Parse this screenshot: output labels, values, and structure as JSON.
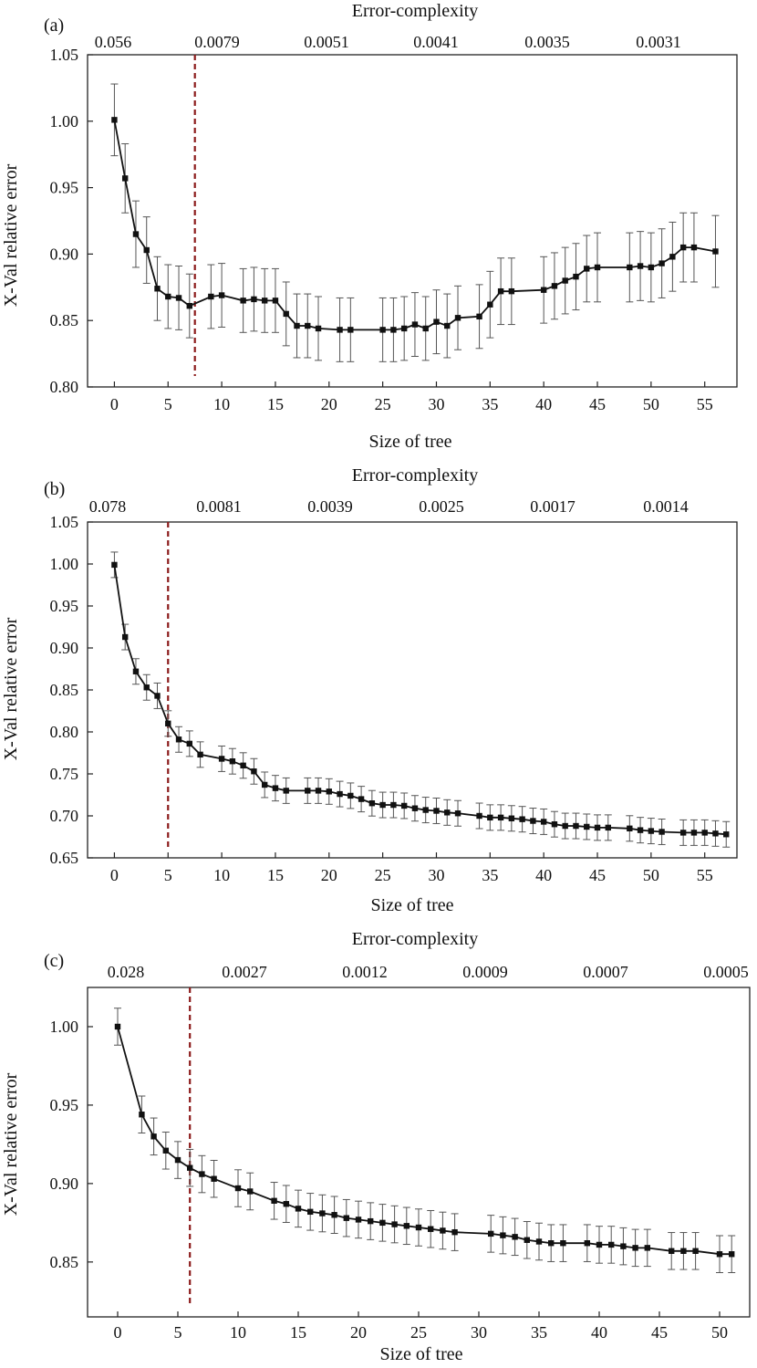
{
  "chart_data": [
    {
      "type": "line",
      "panel_label": "(a)",
      "xlabel": "Size of tree",
      "ylabel": "X-Val relative error",
      "top_axis_title": "Error-complexity",
      "top_tick_labels": [
        "0.056",
        "0.0079",
        "0.0051",
        "0.0041",
        "0.0035",
        "0.0031"
      ],
      "xlim": [
        -2.5,
        58
      ],
      "ylim": [
        0.8,
        1.05
      ],
      "x_ticks": [
        0,
        5,
        10,
        15,
        20,
        25,
        30,
        35,
        40,
        45,
        50,
        55
      ],
      "y_ticks": [
        "0.80",
        "0.85",
        "0.90",
        "0.95",
        "1.00",
        "1.05"
      ],
      "cutoff_x": 7.5,
      "line_color": "#111111",
      "cutoff_color": "#8b1a1a",
      "error_color": "#555555",
      "x": [
        0,
        1,
        2,
        3,
        4,
        5,
        6,
        7,
        9,
        10,
        12,
        13,
        14,
        15,
        16,
        17,
        18,
        19,
        21,
        22,
        25,
        26,
        27,
        28,
        29,
        30,
        31,
        32,
        34,
        35,
        36,
        37,
        40,
        41,
        42,
        43,
        44,
        45,
        48,
        49,
        50,
        51,
        52,
        53,
        54,
        56
      ],
      "values": [
        1.001,
        0.957,
        0.915,
        0.903,
        0.874,
        0.868,
        0.867,
        0.861,
        0.868,
        0.869,
        0.865,
        0.866,
        0.865,
        0.865,
        0.855,
        0.846,
        0.846,
        0.844,
        0.843,
        0.843,
        0.843,
        0.843,
        0.844,
        0.847,
        0.844,
        0.849,
        0.846,
        0.852,
        0.853,
        0.862,
        0.872,
        0.872,
        0.873,
        0.876,
        0.88,
        0.883,
        0.889,
        0.89,
        0.89,
        0.891,
        0.89,
        0.893,
        0.898,
        0.905,
        0.905,
        0.902
      ],
      "error": [
        0.027,
        0.026,
        0.025,
        0.025,
        0.024,
        0.024,
        0.024,
        0.024,
        0.024,
        0.024,
        0.024,
        0.024,
        0.024,
        0.024,
        0.024,
        0.024,
        0.024,
        0.024,
        0.024,
        0.024,
        0.024,
        0.024,
        0.024,
        0.024,
        0.024,
        0.024,
        0.024,
        0.024,
        0.024,
        0.025,
        0.025,
        0.025,
        0.025,
        0.025,
        0.025,
        0.025,
        0.025,
        0.026,
        0.026,
        0.026,
        0.026,
        0.026,
        0.026,
        0.026,
        0.026,
        0.027
      ]
    },
    {
      "type": "line",
      "panel_label": "(b)",
      "xlabel": "Size of tree",
      "ylabel": "X-Val relative error",
      "top_axis_title": "Error-complexity",
      "top_tick_labels": [
        "0.078",
        "0.0081",
        "0.0039",
        "0.0025",
        "0.0017",
        "0.0014"
      ],
      "xlim": [
        -2.5,
        58
      ],
      "ylim": [
        0.65,
        1.05
      ],
      "x_ticks": [
        0,
        5,
        10,
        15,
        20,
        25,
        30,
        35,
        40,
        45,
        50,
        55
      ],
      "y_ticks": [
        "0.65",
        "0.70",
        "0.75",
        "0.80",
        "0.85",
        "0.90",
        "0.95",
        "1.00",
        "1.05"
      ],
      "cutoff_x": 5,
      "line_color": "#111111",
      "cutoff_color": "#8b1a1a",
      "error_color": "#555555",
      "x": [
        0,
        1,
        2,
        3,
        4,
        5,
        6,
        7,
        8,
        10,
        11,
        12,
        13,
        14,
        15,
        16,
        18,
        19,
        20,
        21,
        22,
        23,
        24,
        25,
        26,
        27,
        28,
        29,
        30,
        31,
        32,
        34,
        35,
        36,
        37,
        38,
        39,
        40,
        41,
        42,
        43,
        44,
        45,
        46,
        48,
        49,
        50,
        51,
        53,
        54,
        55,
        56,
        57
      ],
      "values": [
        0.999,
        0.913,
        0.872,
        0.853,
        0.843,
        0.81,
        0.791,
        0.786,
        0.773,
        0.768,
        0.765,
        0.76,
        0.753,
        0.737,
        0.733,
        0.73,
        0.73,
        0.73,
        0.729,
        0.726,
        0.724,
        0.72,
        0.715,
        0.713,
        0.713,
        0.712,
        0.709,
        0.707,
        0.706,
        0.704,
        0.703,
        0.7,
        0.698,
        0.698,
        0.697,
        0.696,
        0.694,
        0.693,
        0.69,
        0.688,
        0.688,
        0.687,
        0.686,
        0.686,
        0.685,
        0.683,
        0.682,
        0.681,
        0.68,
        0.68,
        0.68,
        0.679,
        0.678
      ]
    },
    {
      "type": "line",
      "panel_label": "(c)",
      "xlabel": "Size of tree",
      "ylabel": "X-Val relative error",
      "top_axis_title": "Error-complexity",
      "top_tick_labels": [
        "0.028",
        "0.0027",
        "0.0012",
        "0.0009",
        "0.0007",
        "0.0005"
      ],
      "xlim": [
        -2.5,
        52.5
      ],
      "ylim": [
        0.815,
        1.025
      ],
      "x_ticks": [
        0,
        5,
        10,
        15,
        20,
        25,
        30,
        35,
        40,
        45,
        50
      ],
      "y_ticks": [
        "0.85",
        "0.90",
        "0.95",
        "1.00"
      ],
      "cutoff_x": 6,
      "line_color": "#111111",
      "cutoff_color": "#8b1a1a",
      "error_color": "#555555",
      "x": [
        0,
        2,
        3,
        4,
        5,
        6,
        7,
        8,
        10,
        11,
        13,
        14,
        15,
        16,
        17,
        18,
        19,
        20,
        21,
        22,
        23,
        24,
        25,
        26,
        27,
        28,
        31,
        32,
        33,
        34,
        35,
        36,
        37,
        39,
        40,
        41,
        42,
        43,
        44,
        46,
        47,
        48,
        50,
        51
      ],
      "values": [
        1.0,
        0.944,
        0.93,
        0.921,
        0.915,
        0.91,
        0.906,
        0.903,
        0.897,
        0.895,
        0.889,
        0.887,
        0.884,
        0.882,
        0.881,
        0.88,
        0.878,
        0.877,
        0.876,
        0.875,
        0.874,
        0.873,
        0.872,
        0.871,
        0.87,
        0.869,
        0.868,
        0.867,
        0.866,
        0.864,
        0.863,
        0.862,
        0.862,
        0.862,
        0.861,
        0.861,
        0.86,
        0.859,
        0.859,
        0.857,
        0.857,
        0.857,
        0.855,
        0.855
      ]
    }
  ]
}
